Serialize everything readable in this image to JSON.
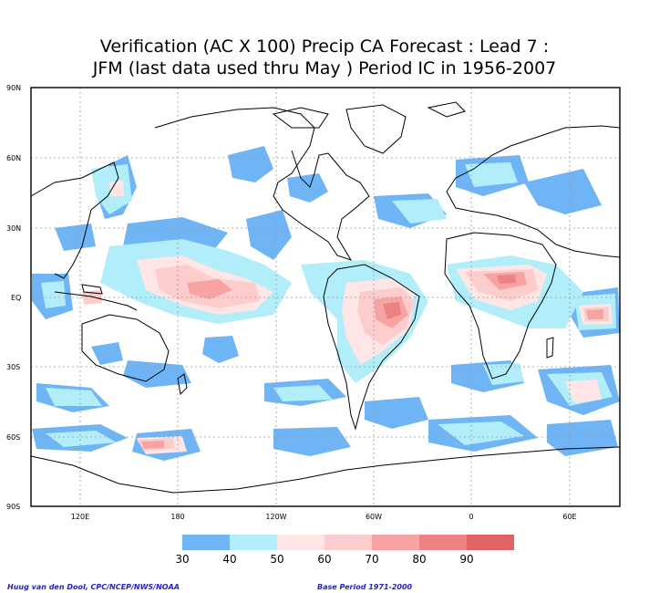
{
  "title": {
    "line1": "Verification (AC X 100) Precip CA Forecast : Lead 7 :",
    "line2": "JFM (last data used thru May ) Period IC in 1956-2007"
  },
  "lat_labels": [
    "90N",
    "60N",
    "30N",
    "EQ",
    "30S",
    "60S",
    "90S"
  ],
  "lon_labels": [
    "120E",
    "180",
    "120W",
    "60W",
    "0",
    "60E"
  ],
  "legend": {
    "ticks": [
      "30",
      "40",
      "50",
      "60",
      "70",
      "80",
      "90"
    ],
    "colors": [
      "#6fb5f6",
      "#b2eefa",
      "#ffe6e6",
      "#fdcdcd",
      "#f7a3a3",
      "#ec8282",
      "#e06464"
    ]
  },
  "footer": {
    "left": "Huug van den Dool, CPC/NCEP/NWS/NOAA",
    "right": "Base Period 1971-2000"
  }
}
